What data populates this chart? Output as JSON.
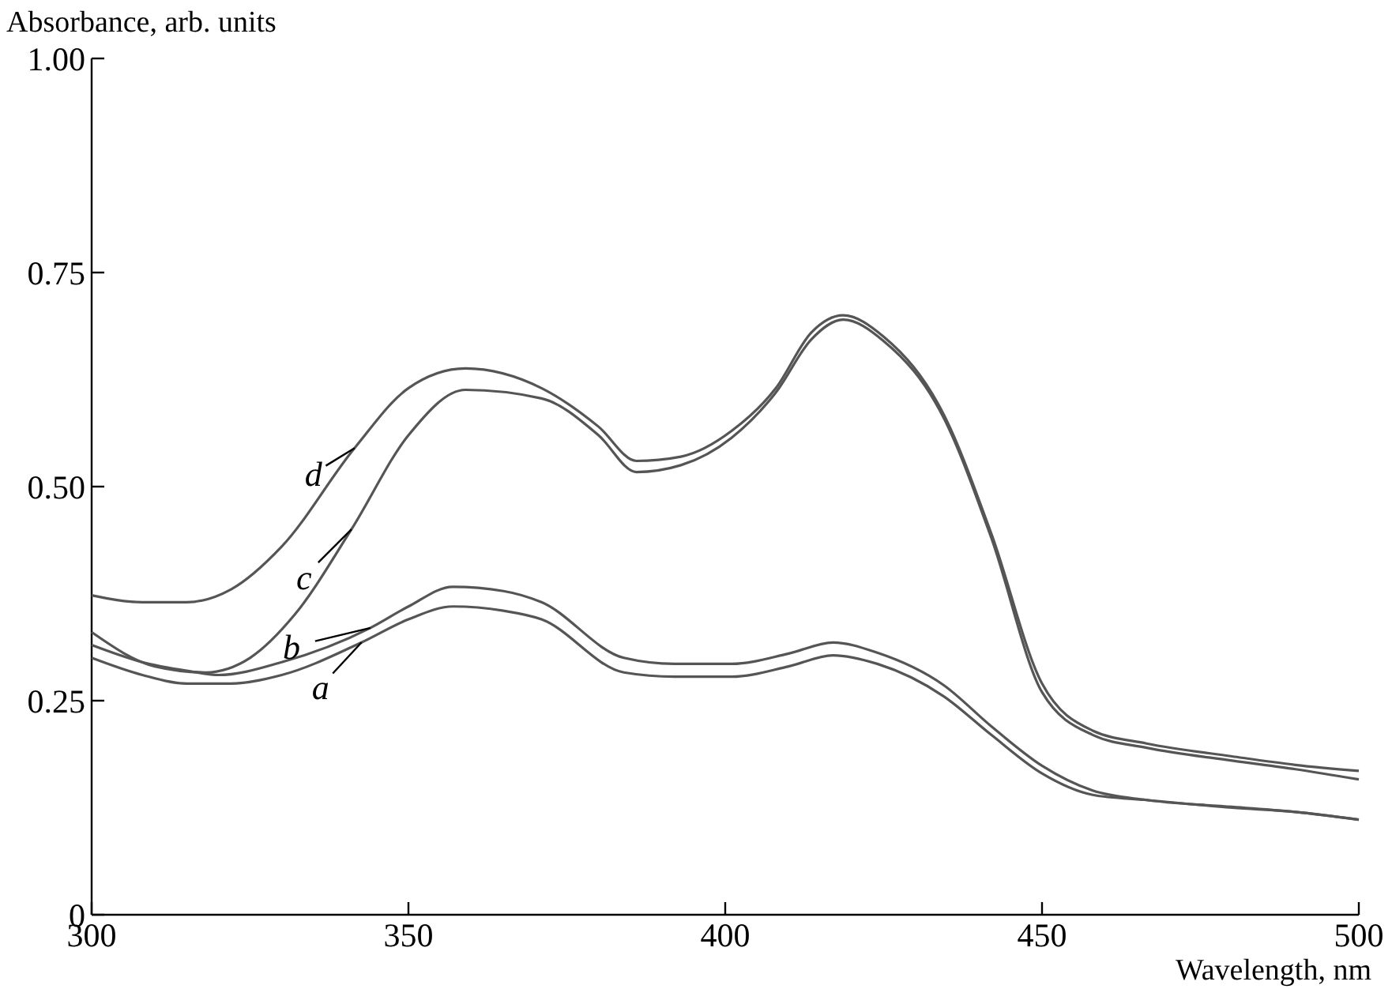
{
  "chart_data": {
    "type": "line",
    "xlabel": "Wavelength, nm",
    "ylabel": "Absorbance, arb. units",
    "xlim": [
      300,
      500
    ],
    "ylim": [
      0,
      1
    ],
    "xticks": [
      300,
      350,
      400,
      450,
      500
    ],
    "yticks": [
      0,
      {
        "value": 0.25,
        "label": "0.25"
      },
      {
        "value": 0.5,
        "label": "0.50"
      },
      {
        "value": 0.75,
        "label": "0.75"
      },
      {
        "value": 1,
        "label": "1.00"
      }
    ],
    "grid": false,
    "marker": "none",
    "line_style": "solid",
    "series": [
      {
        "color": "#555555",
        "x": [
          300,
          308,
          315,
          322,
          330,
          342.6,
          350,
          357,
          365,
          371,
          384,
          392,
          401,
          410,
          417,
          424,
          434.5,
          442,
          450,
          458,
          466.5,
          480,
          490,
          500
        ],
        "values": [
          0.3,
          0.28,
          0.27,
          0.27,
          0.28,
          0.318,
          0.345,
          0.36,
          0.355,
          0.345,
          0.283,
          0.278,
          0.278,
          0.29,
          0.303,
          0.293,
          0.255,
          0.21,
          0.165,
          0.14,
          0.134,
          0.125,
          0.12,
          0.111
        ]
      },
      {
        "color": "#555555",
        "x": [
          300,
          308,
          315,
          320,
          330,
          344,
          350,
          357,
          365,
          371,
          384,
          392,
          401,
          410,
          417,
          424,
          434.5,
          442,
          450,
          458,
          466.5,
          480,
          490,
          500
        ],
        "values": [
          0.315,
          0.295,
          0.285,
          0.28,
          0.295,
          0.335,
          0.36,
          0.383,
          0.378,
          0.365,
          0.3,
          0.293,
          0.293,
          0.305,
          0.318,
          0.306,
          0.268,
          0.22,
          0.174,
          0.145,
          0.134,
          0.126,
          0.12,
          0.111
        ]
      },
      {
        "color": "#555555",
        "x": [
          300,
          310,
          318,
          325,
          332,
          341,
          350,
          359,
          371,
          380,
          386,
          393,
          401,
          408,
          413.6,
          418.6,
          425,
          434.5,
          442,
          450,
          458,
          466.5,
          480,
          490,
          500
        ],
        "values": [
          0.33,
          0.29,
          0.283,
          0.3,
          0.35,
          0.45,
          0.56,
          0.613,
          0.603,
          0.56,
          0.517,
          0.525,
          0.557,
          0.61,
          0.672,
          0.695,
          0.67,
          0.58,
          0.44,
          0.26,
          0.21,
          0.195,
          0.18,
          0.17,
          0.158
        ]
      },
      {
        "color": "#555555",
        "x": [
          300,
          308,
          315,
          322,
          330,
          341.5,
          350,
          359,
          371,
          380,
          386,
          393,
          401,
          408,
          413.6,
          418.6,
          425,
          434.5,
          442,
          450,
          458,
          466.5,
          480,
          490,
          500
        ],
        "values": [
          0.373,
          0.365,
          0.365,
          0.38,
          0.43,
          0.545,
          0.615,
          0.638,
          0.615,
          0.57,
          0.53,
          0.535,
          0.565,
          0.615,
          0.68,
          0.7,
          0.675,
          0.584,
          0.445,
          0.27,
          0.215,
          0.2,
          0.185,
          0.175,
          0.168
        ]
      }
    ],
    "annotations": [
      {
        "text": "a",
        "x": 342.6,
        "y": 0.318
      },
      {
        "text": "b",
        "x": 344,
        "y": 0.335
      },
      {
        "text": "c",
        "x": 341,
        "y": 0.45
      },
      {
        "text": "d",
        "x": 341.5,
        "y": 0.545
      }
    ]
  }
}
